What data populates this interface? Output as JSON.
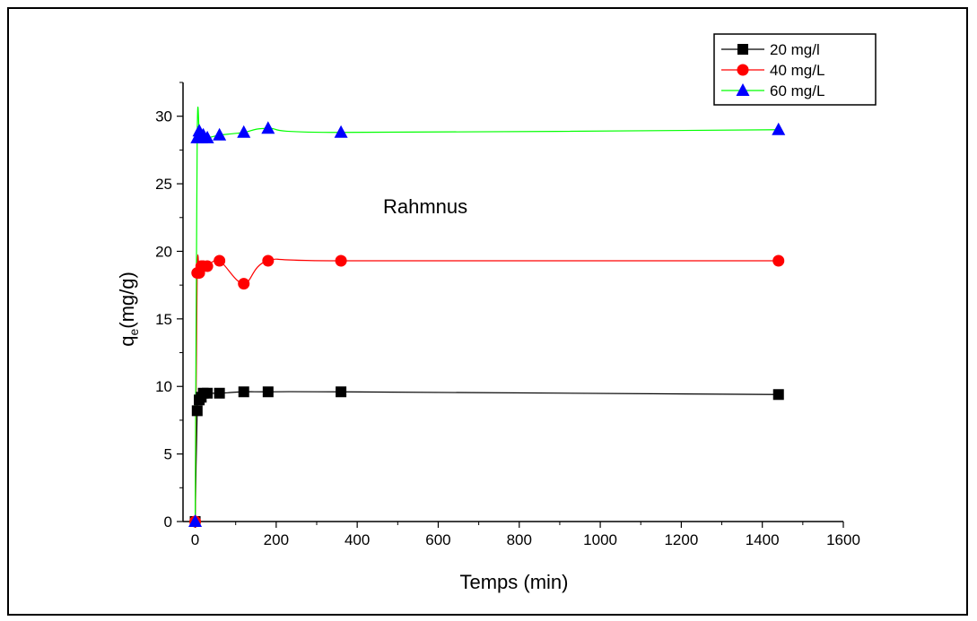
{
  "chart_data": {
    "type": "line",
    "title": "",
    "annotation": "Rahmnus",
    "xlabel": "Temps (min)",
    "ylabel_main": "q",
    "ylabel_sub": "e",
    "ylabel_rest": "(mg/g)",
    "xlim": [
      -30,
      1600
    ],
    "ylim": [
      0,
      32.5
    ],
    "xticks": [
      0,
      200,
      400,
      600,
      800,
      1000,
      1200,
      1400,
      1600
    ],
    "yticks": [
      0,
      5,
      10,
      15,
      20,
      25,
      30
    ],
    "grid": false,
    "legend_position": "top-right",
    "series": [
      {
        "name": "20 mg/l",
        "color": "#000000",
        "marker": "square",
        "x": [
          0,
          5,
          10,
          15,
          20,
          30,
          60,
          120,
          180,
          360,
          1440
        ],
        "y": [
          0,
          8.2,
          9.0,
          9.2,
          9.5,
          9.5,
          9.5,
          9.6,
          9.6,
          9.6,
          9.4
        ]
      },
      {
        "name": "40 mg/L",
        "color": "#ff0000",
        "marker": "circle",
        "x": [
          0,
          5,
          10,
          15,
          20,
          30,
          60,
          120,
          180,
          360,
          1440
        ],
        "y": [
          0,
          18.4,
          18.4,
          18.9,
          18.9,
          18.9,
          19.3,
          17.6,
          19.3,
          19.3,
          19.3
        ]
      },
      {
        "name": "60 mg/L",
        "color": "#00ff00",
        "marker_color": "#0000ff",
        "marker": "triangle",
        "x": [
          0,
          5,
          10,
          15,
          20,
          30,
          60,
          120,
          180,
          360,
          1440
        ],
        "y": [
          0,
          28.4,
          28.9,
          28.4,
          28.6,
          28.4,
          28.6,
          28.8,
          29.1,
          28.8,
          29.0
        ]
      }
    ]
  }
}
